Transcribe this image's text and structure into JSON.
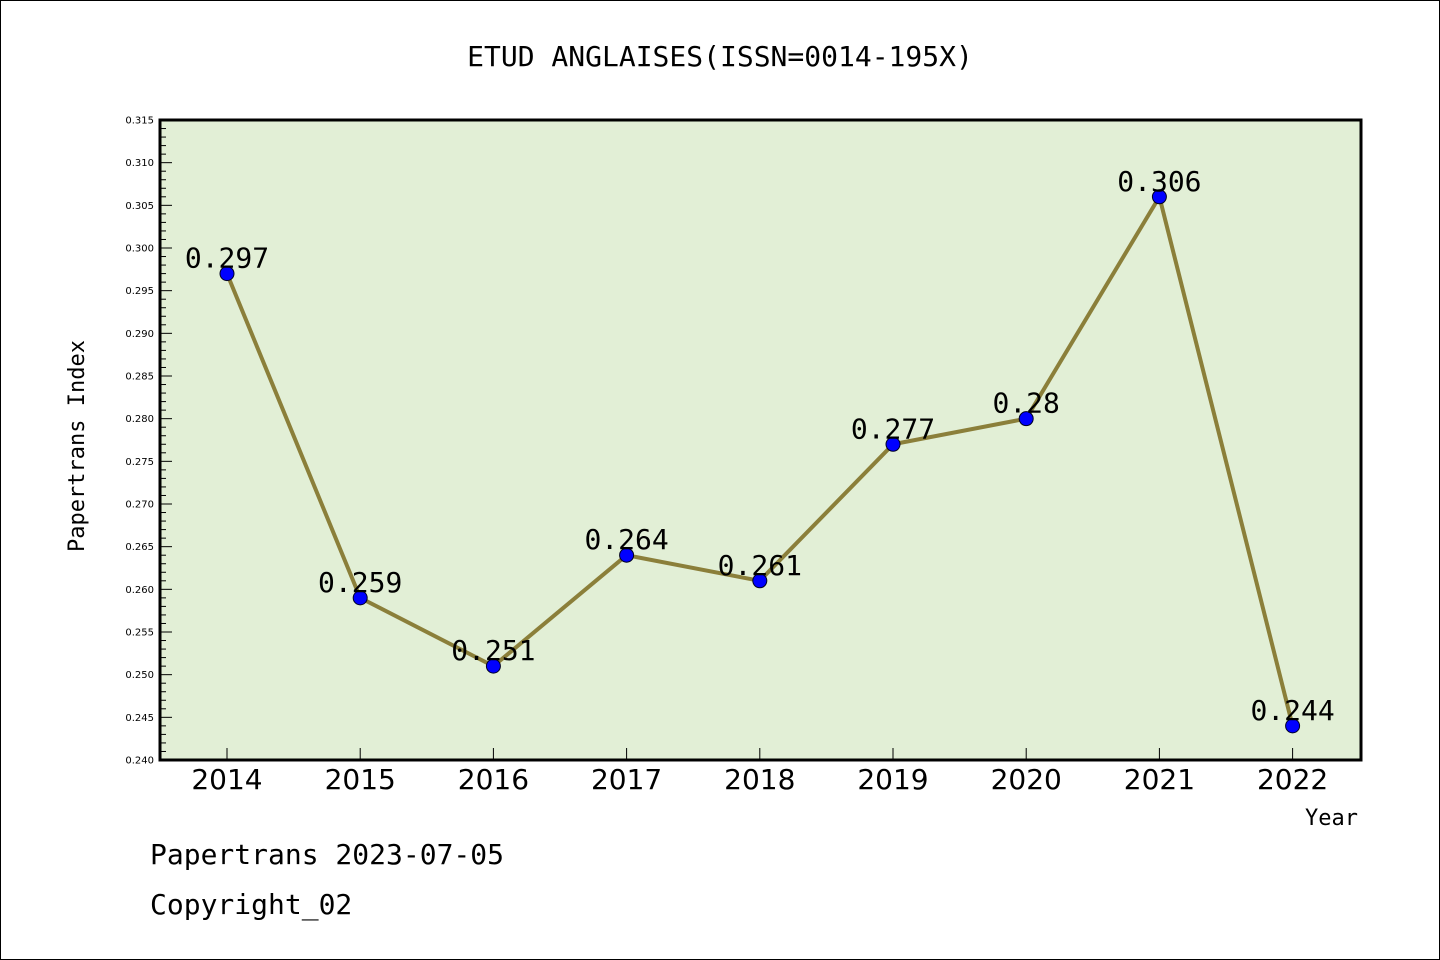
{
  "chart_data": {
    "type": "line",
    "title": "ETUD ANGLAISES(ISSN=0014-195X)",
    "xlabel": "Year",
    "ylabel": "Papertrans Index",
    "categories": [
      "2014",
      "2015",
      "2016",
      "2017",
      "2018",
      "2019",
      "2020",
      "2021",
      "2022"
    ],
    "series": [
      {
        "values": [
          0.297,
          0.259,
          0.251,
          0.264,
          0.261,
          0.277,
          0.28,
          0.306,
          0.244
        ]
      }
    ],
    "data_labels": [
      "0.297",
      "0.259",
      "0.251",
      "0.264",
      "0.261",
      "0.277",
      "0.28",
      "0.306",
      "0.244"
    ],
    "ylim": [
      0.24,
      0.315
    ],
    "yticks": [
      "0.240",
      "0.245",
      "0.250",
      "0.255",
      "0.260",
      "0.265",
      "0.270",
      "0.275",
      "0.280",
      "0.285",
      "0.290",
      "0.295",
      "0.300",
      "0.305",
      "0.310",
      "0.315"
    ],
    "grid": false,
    "legend": "none",
    "colors": {
      "plot_background": "#e2efd6",
      "line": "#8b7f3a",
      "marker": "#0000ff"
    }
  },
  "footer": {
    "line1": "Papertrans 2023-07-05",
    "line2": "Copyright_02"
  }
}
